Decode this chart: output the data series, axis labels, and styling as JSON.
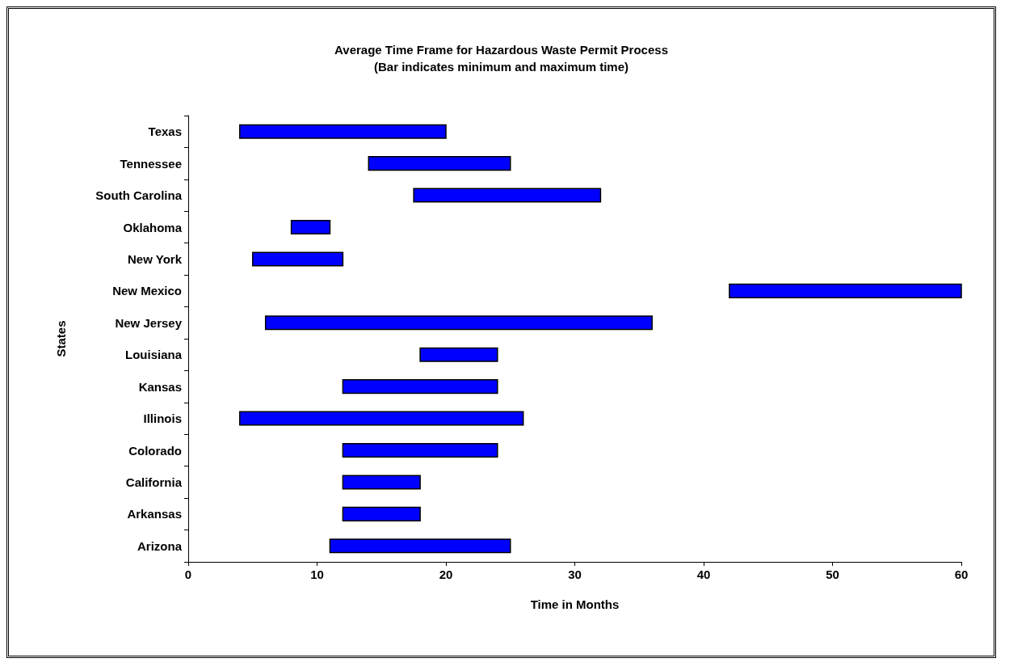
{
  "chart_data": {
    "type": "bar",
    "orientation": "horizontal",
    "title": "Average Time Frame for Hazardous Waste Permit Process",
    "subtitle": "(Bar indicates minimum and maximum time)",
    "xlabel": "Time in Months",
    "ylabel": "States",
    "categories": [
      "Texas",
      "Tennessee",
      "South Carolina",
      "Oklahoma",
      "New York",
      "New Mexico",
      "New Jersey",
      "Louisiana",
      "Kansas",
      "Illinois",
      "Colorado",
      "California",
      "Arkansas",
      "Arizona"
    ],
    "base": [
      4,
      14,
      17.5,
      8,
      5,
      42,
      6,
      18,
      12,
      4,
      12,
      12,
      12,
      11
    ],
    "values": [
      16,
      11,
      14.5,
      3,
      7,
      18,
      30,
      6,
      12,
      22,
      12,
      6,
      6,
      14
    ],
    "color": "#0000ff",
    "xlim": [
      0,
      60
    ],
    "xticks": [
      0,
      10,
      20,
      30,
      40,
      50,
      60
    ]
  }
}
